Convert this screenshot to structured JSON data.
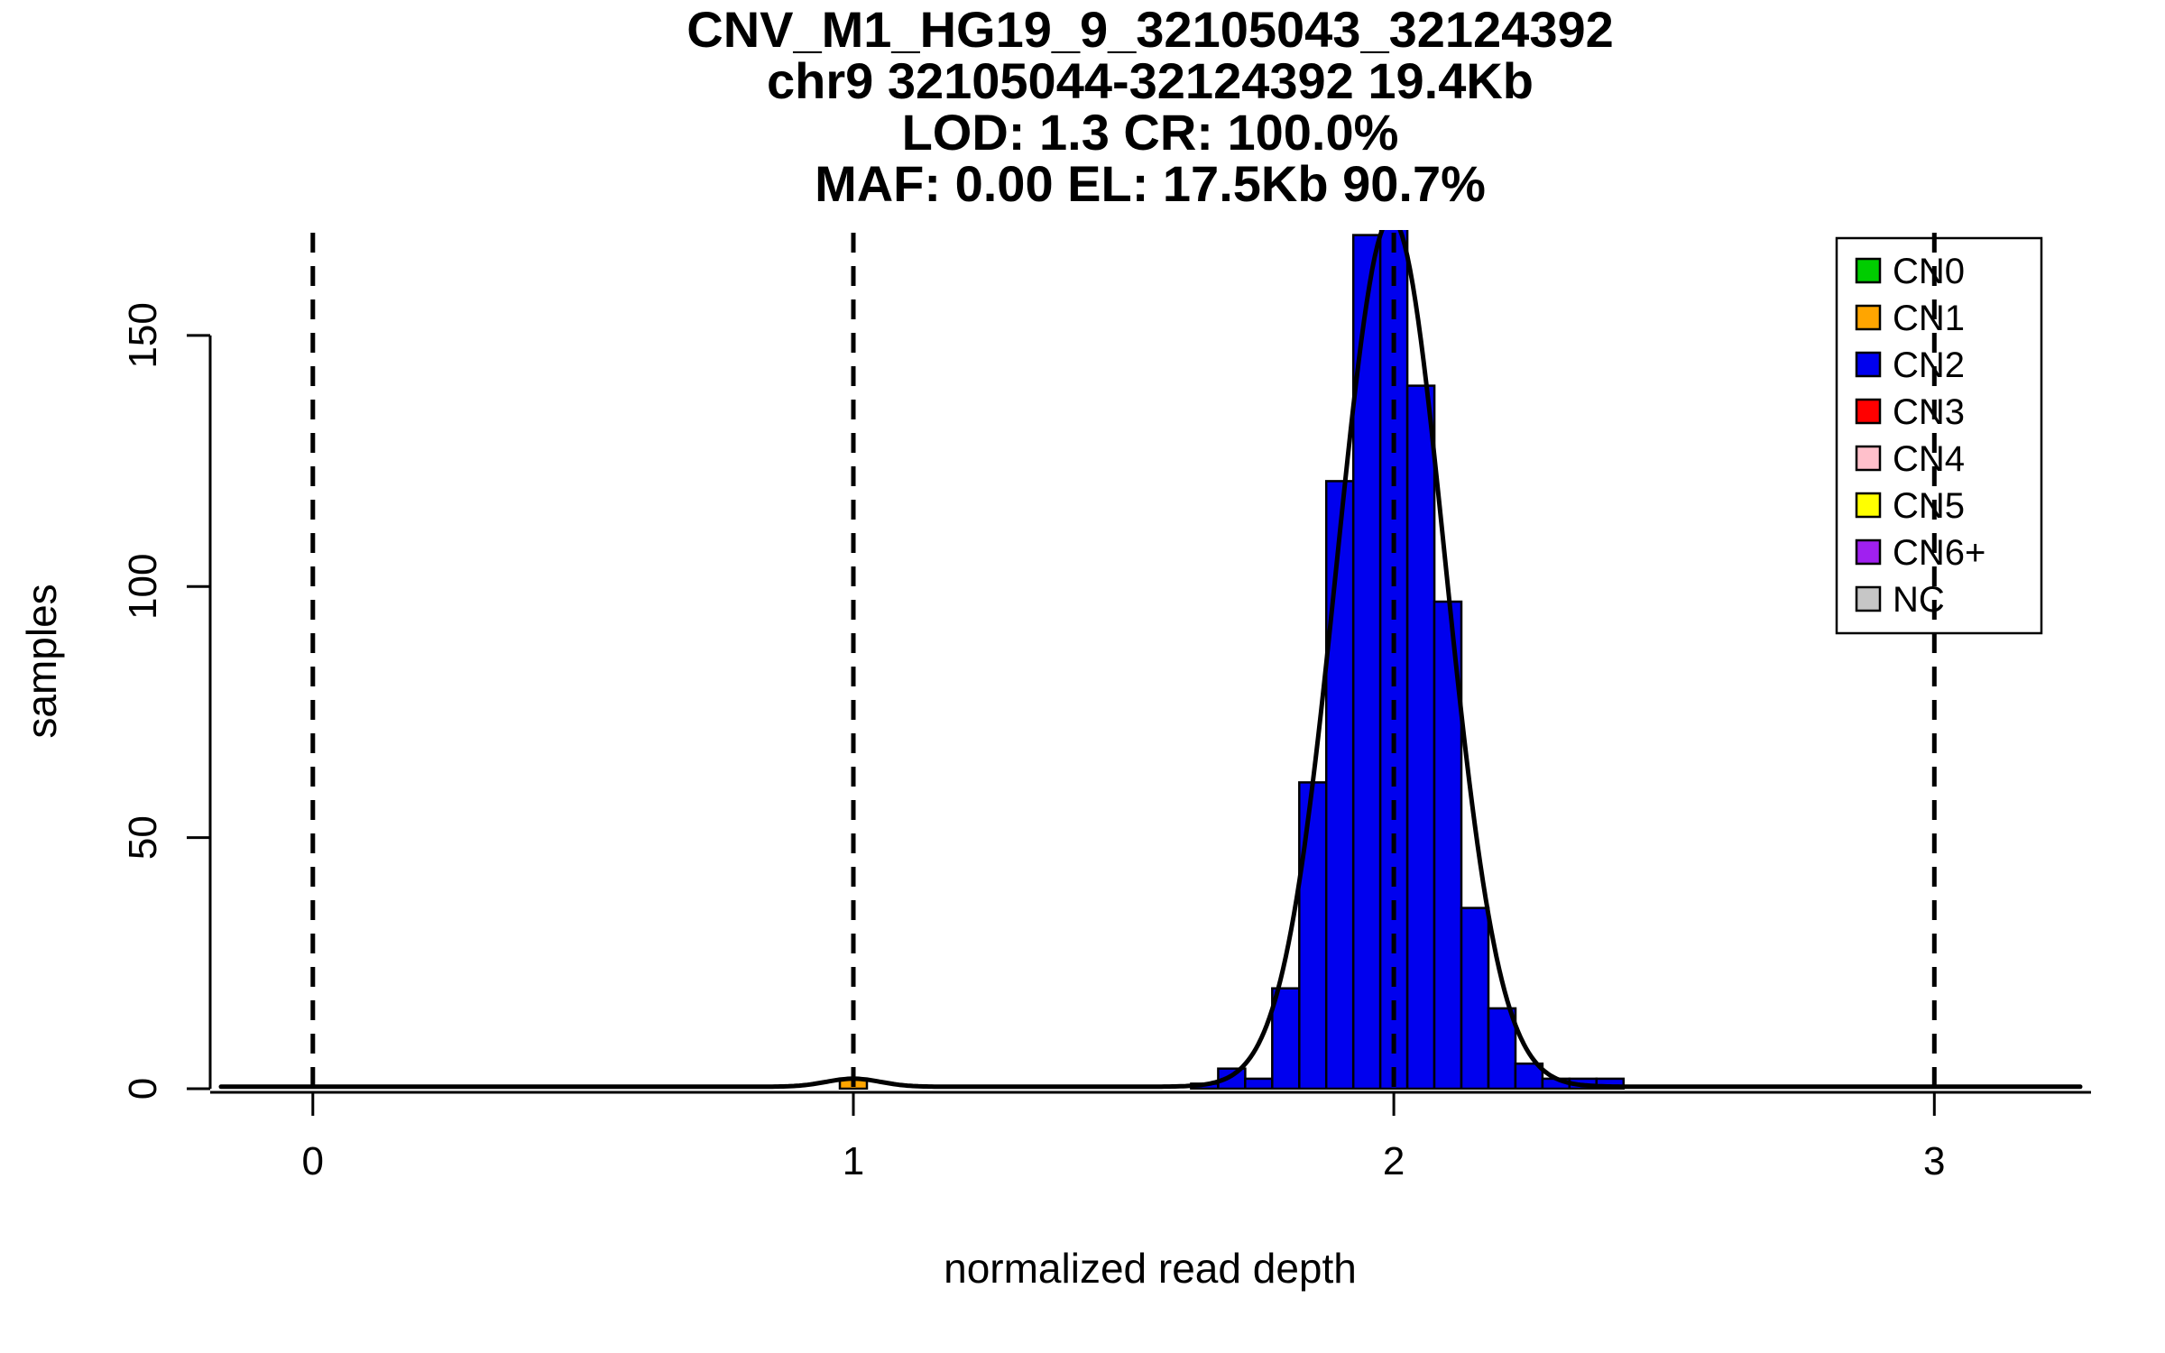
{
  "chart_data": {
    "type": "bar",
    "title_lines": [
      "CNV_M1_HG19_9_32105043_32124392",
      "chr9 32105044-32124392 19.4Kb",
      "LOD: 1.3 CR: 100.0%",
      "MAF: 0.00 EL: 17.5Kb 90.7%"
    ],
    "xlabel": "normalized read depth",
    "ylabel": "samples",
    "xlim": [
      -0.19,
      3.29
    ],
    "ylim": [
      0,
      171
    ],
    "x_ticks": [
      0,
      1,
      2,
      3
    ],
    "y_ticks": [
      0,
      50,
      100,
      150
    ],
    "grid": false,
    "dashed_guides_x": [
      0,
      1,
      2,
      3
    ],
    "bin_width": 0.05,
    "series": [
      {
        "name": "CN2",
        "color": "#0000EE",
        "bins": [
          [
            1.625,
            1
          ],
          [
            1.675,
            4
          ],
          [
            1.725,
            2
          ],
          [
            1.775,
            20
          ],
          [
            1.825,
            61
          ],
          [
            1.875,
            121
          ],
          [
            1.925,
            170
          ],
          [
            1.975,
            176
          ],
          [
            2.025,
            140
          ],
          [
            2.075,
            97
          ],
          [
            2.125,
            36
          ],
          [
            2.175,
            16
          ],
          [
            2.225,
            5
          ],
          [
            2.275,
            2
          ],
          [
            2.325,
            2
          ],
          [
            2.375,
            2
          ]
        ]
      },
      {
        "name": "CN1",
        "color": "#FFA500",
        "bins": [
          [
            0.975,
            2
          ]
        ]
      }
    ],
    "density_curve": {
      "color": "#000000",
      "baseline": 0.4,
      "gaussians": [
        {
          "mu": 1.995,
          "sigma": 0.1,
          "amp": 173
        },
        {
          "mu": 1.0,
          "sigma": 0.05,
          "amp": 1.6
        }
      ]
    },
    "legend": {
      "position": "top-right",
      "items": [
        {
          "label": "CN0",
          "color": "#00CD00"
        },
        {
          "label": "CN1",
          "color": "#FFA500"
        },
        {
          "label": "CN2",
          "color": "#0000EE"
        },
        {
          "label": "CN3",
          "color": "#FF0000"
        },
        {
          "label": "CN4",
          "color": "#FFC0CB"
        },
        {
          "label": "CN5",
          "color": "#FFFF00"
        },
        {
          "label": "CN6+",
          "color": "#A020F0"
        },
        {
          "label": "NC",
          "color": "#C6C6C6"
        }
      ]
    }
  }
}
